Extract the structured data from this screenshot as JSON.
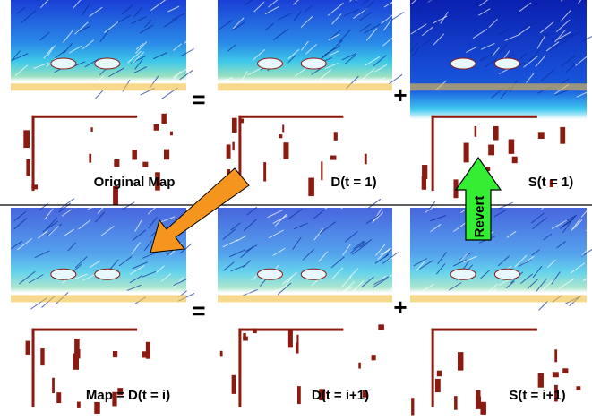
{
  "panels": [
    {
      "label": "Original Map"
    },
    {
      "label": "D(t = 1)"
    },
    {
      "label": "S(t = 1)"
    },
    {
      "label": "Map = D(t = i)"
    },
    {
      "label": "D(t = i+1)"
    },
    {
      "label": "S(t = i+1)"
    }
  ],
  "operators": {
    "top_equals": "=",
    "top_plus": "+",
    "bottom_equals": "=",
    "bottom_plus": "+"
  },
  "arrow_label": "Revert"
}
